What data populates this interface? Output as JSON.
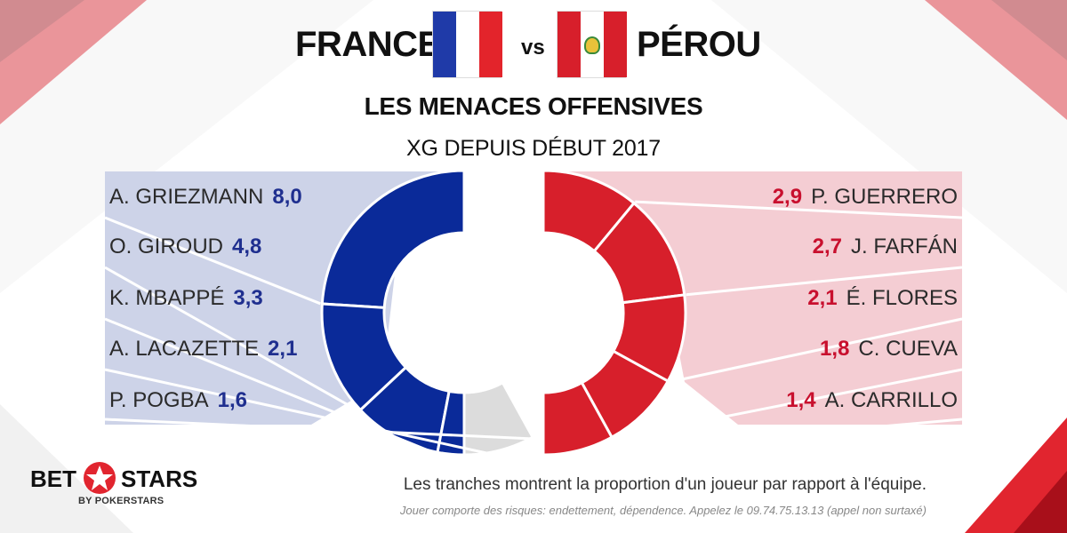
{
  "header": {
    "team_home": "FRANCE",
    "vs": "vs",
    "team_away": "PÉROU",
    "home_flag_icon": "france-flag-icon",
    "away_flag_icon": "peru-flag-icon"
  },
  "colors": {
    "france_blue": "#0a2a99",
    "peru_red": "#d71f2b",
    "remainder_gray": "#dcdcdc",
    "france_panel": "#cdd3e8",
    "peru_panel": "#f4cdd3"
  },
  "chart_data": {
    "type": "pie",
    "title": "LES MENACES OFFENSIVES",
    "subtitle": "XG DEPUIS DÉBUT 2017",
    "series": [
      {
        "name": "FRANCE",
        "labels": [
          "A. GRIEZMANN",
          "O. GIROUD",
          "K. MBAPPÉ",
          "A. LACAZETTE",
          "P. POGBA"
        ],
        "display_values": [
          "8,0",
          "4,8",
          "3,3",
          "2,1",
          "1,6"
        ],
        "values": [
          8.0,
          4.8,
          3.3,
          2.1,
          1.6
        ],
        "share_of_team": [
          0.24,
          0.13,
          0.1,
          0.06,
          0.05
        ]
      },
      {
        "name": "PÉROU",
        "labels": [
          "P. GUERRERO",
          "J. FARFÁN",
          "É. FLORES",
          "C. CUEVA",
          "A. CARRILLO"
        ],
        "display_values": [
          "2,9",
          "2,7",
          "2,1",
          "1,8",
          "1,4"
        ],
        "values": [
          2.9,
          2.7,
          2.1,
          1.8,
          1.4
        ],
        "share_of_team": [
          0.11,
          0.12,
          0.1,
          0.09,
          0.08
        ]
      }
    ]
  },
  "footer": {
    "note": "Les tranches montrent la proportion d'un joueur par rapport à l'équipe.",
    "disclaimer": "Jouer comporte des risques: endettement, dépendence. Appelez le 09.74.75.13.13  (appel non surtaxé)",
    "brand_bet": "BET",
    "brand_stars": "STARS",
    "brand_by": "BY POKERSTARS"
  }
}
